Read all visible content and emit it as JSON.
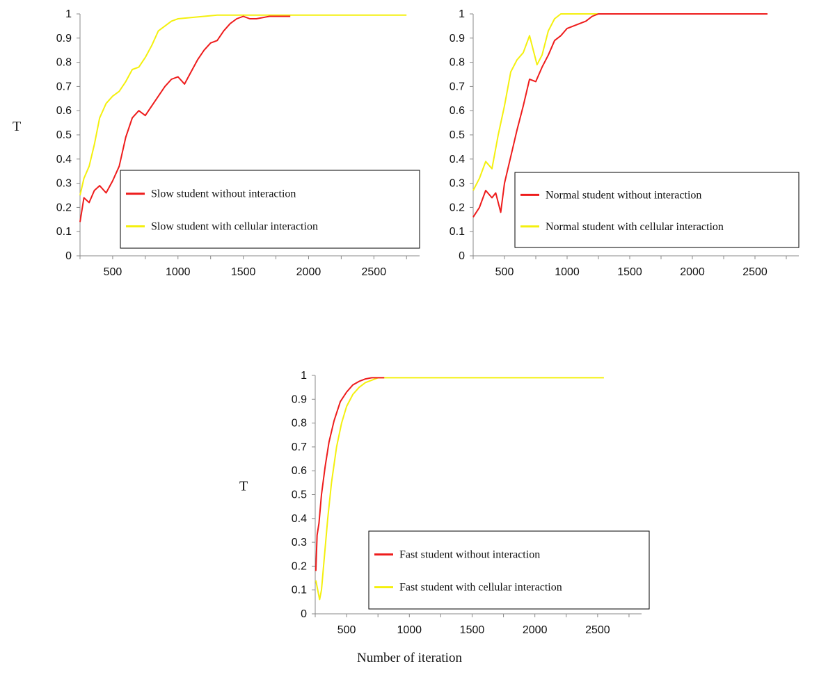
{
  "figure": {
    "x_axis_title": "Number of iteration"
  },
  "colors": {
    "without": "#ee1c1c",
    "with": "#f4f00e",
    "axis": "#888888"
  },
  "chart_data": [
    {
      "type": "line",
      "ylabel": "T",
      "xlabel": "",
      "xlim": [
        250,
        2850
      ],
      "ylim": [
        0,
        1
      ],
      "x_ticks": [
        500,
        1000,
        1500,
        2000,
        2500
      ],
      "y_ticks": [
        0,
        0.1,
        0.2,
        0.3,
        0.4,
        0.5,
        0.6,
        0.7,
        0.8,
        0.9,
        1
      ],
      "y_tick_labels": [
        "0",
        "0.1",
        "0.2",
        "0.3",
        "0.4",
        "0.5",
        "0.6",
        "0.7",
        "0.8",
        "0.9",
        "1"
      ],
      "legend": "bottom-right",
      "series": [
        {
          "name": "Slow student without interaction",
          "color_key": "without",
          "x": [
            250,
            280,
            320,
            360,
            400,
            450,
            500,
            550,
            600,
            650,
            700,
            750,
            800,
            850,
            900,
            950,
            1000,
            1050,
            1100,
            1150,
            1200,
            1250,
            1300,
            1350,
            1400,
            1450,
            1500,
            1550,
            1600,
            1700,
            1800,
            1860
          ],
          "y": [
            0.14,
            0.24,
            0.22,
            0.27,
            0.29,
            0.26,
            0.31,
            0.37,
            0.49,
            0.57,
            0.6,
            0.58,
            0.62,
            0.66,
            0.7,
            0.73,
            0.74,
            0.71,
            0.76,
            0.81,
            0.85,
            0.88,
            0.89,
            0.93,
            0.96,
            0.98,
            0.99,
            0.98,
            0.98,
            0.99,
            0.99,
            0.99
          ]
        },
        {
          "name": "Slow student with cellular interaction",
          "color_key": "with",
          "x": [
            250,
            280,
            320,
            360,
            400,
            450,
            500,
            550,
            600,
            650,
            700,
            750,
            800,
            850,
            900,
            950,
            1000,
            1100,
            1200,
            1300,
            1400,
            1500,
            1600,
            2000,
            2500,
            2750
          ],
          "y": [
            0.25,
            0.32,
            0.37,
            0.46,
            0.57,
            0.63,
            0.66,
            0.68,
            0.72,
            0.77,
            0.78,
            0.82,
            0.87,
            0.93,
            0.95,
            0.97,
            0.98,
            0.985,
            0.99,
            0.995,
            0.995,
            0.995,
            0.995,
            0.995,
            0.995,
            0.995
          ]
        }
      ]
    },
    {
      "type": "line",
      "ylabel": "",
      "xlabel": "",
      "xlim": [
        250,
        2850
      ],
      "ylim": [
        0,
        1
      ],
      "x_ticks": [
        500,
        1000,
        1500,
        2000,
        2500
      ],
      "y_ticks": [
        0,
        0.1,
        0.2,
        0.3,
        0.4,
        0.5,
        0.6,
        0.7,
        0.8,
        0.9,
        1
      ],
      "y_tick_labels": [
        "0",
        "0.1",
        "0.2",
        "0.3",
        "0.4",
        "0.5",
        "0.6",
        "0.7",
        "0.8",
        "0.9",
        "1"
      ],
      "legend": "bottom-right",
      "series": [
        {
          "name": "Normal student without interaction",
          "color_key": "without",
          "x": [
            250,
            300,
            350,
            400,
            430,
            470,
            500,
            550,
            600,
            650,
            700,
            750,
            800,
            850,
            900,
            950,
            1000,
            1050,
            1100,
            1150,
            1200,
            1250,
            1300,
            1350,
            1500,
            2000,
            2600
          ],
          "y": [
            0.16,
            0.2,
            0.27,
            0.24,
            0.26,
            0.18,
            0.3,
            0.41,
            0.52,
            0.62,
            0.73,
            0.72,
            0.78,
            0.83,
            0.89,
            0.91,
            0.94,
            0.95,
            0.96,
            0.97,
            0.99,
            1.0,
            1.0,
            1.0,
            1.0,
            1.0,
            1.0
          ],
          "note_x": "",
          "note_y": ""
        },
        {
          "name": "Normal student with cellular interaction",
          "color_key": "with",
          "x": [
            250,
            300,
            350,
            400,
            450,
            500,
            550,
            600,
            650,
            700,
            730,
            760,
            800,
            850,
            900,
            950,
            1000,
            1100,
            1200,
            1500,
            2000,
            2600
          ],
          "y": [
            0.27,
            0.32,
            0.39,
            0.36,
            0.5,
            0.62,
            0.76,
            0.81,
            0.84,
            0.91,
            0.85,
            0.79,
            0.83,
            0.93,
            0.98,
            1.0,
            1.0,
            1.0,
            1.0,
            1.0,
            1.0,
            1.0
          ]
        }
      ]
    },
    {
      "type": "line",
      "ylabel": "T",
      "xlabel": "Number of iteration",
      "xlim": [
        250,
        2850
      ],
      "ylim": [
        0,
        1
      ],
      "x_ticks": [
        500,
        1000,
        1500,
        2000,
        2500
      ],
      "y_ticks": [
        0,
        0.1,
        0.2,
        0.3,
        0.4,
        0.5,
        0.6,
        0.7,
        0.8,
        0.9,
        1
      ],
      "y_tick_labels": [
        "0",
        "0.1",
        "0.2",
        "0.3",
        "0.4",
        "0.5",
        "0.6",
        "0.7",
        "0.8",
        "0.9",
        "1"
      ],
      "legend": "bottom-right",
      "series": [
        {
          "name": "Fast student without interaction",
          "color_key": "without",
          "x": [
            255,
            265,
            280,
            300,
            330,
            360,
            400,
            450,
            500,
            550,
            600,
            650,
            700,
            750,
            800
          ],
          "y": [
            0.18,
            0.33,
            0.38,
            0.5,
            0.62,
            0.72,
            0.81,
            0.89,
            0.93,
            0.96,
            0.975,
            0.985,
            0.99,
            0.99,
            0.99
          ]
        },
        {
          "name": "Fast student with cellular interaction",
          "color_key": "with",
          "x": [
            255,
            270,
            285,
            300,
            320,
            350,
            380,
            420,
            460,
            500,
            550,
            600,
            650,
            700,
            750,
            800,
            1000,
            1500,
            2000,
            2300,
            2500,
            2550
          ],
          "y": [
            0.14,
            0.1,
            0.06,
            0.1,
            0.22,
            0.4,
            0.55,
            0.7,
            0.8,
            0.87,
            0.92,
            0.95,
            0.97,
            0.98,
            0.99,
            0.99,
            0.99,
            0.99,
            0.99,
            0.99,
            0.99,
            0.99
          ]
        }
      ]
    }
  ]
}
